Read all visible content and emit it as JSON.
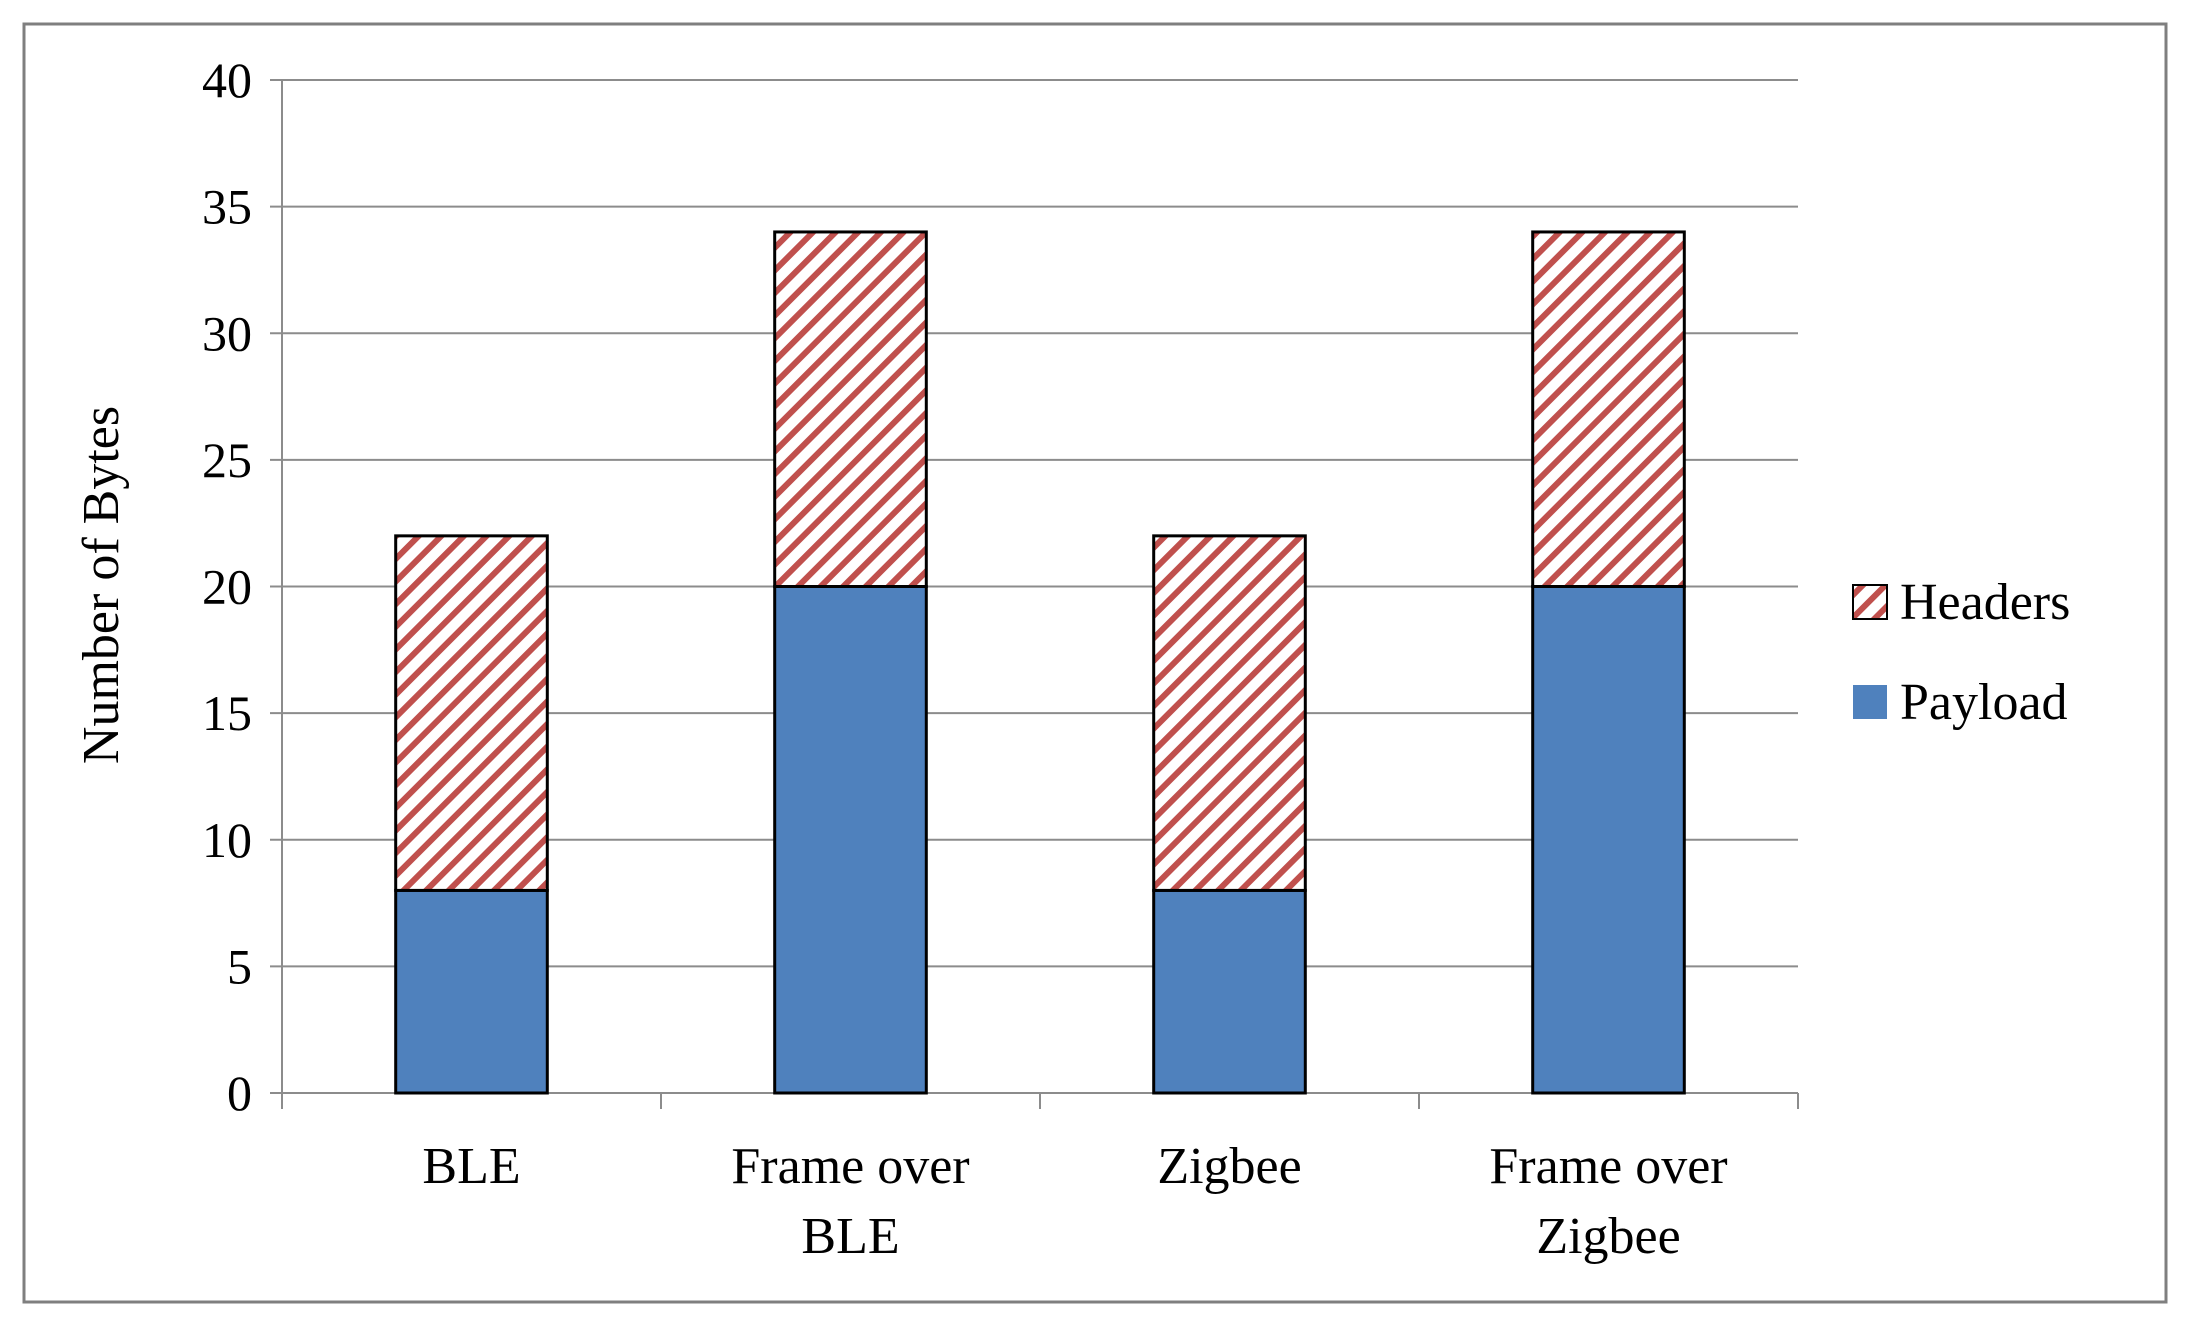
{
  "chart_data": {
    "type": "bar",
    "stacked": true,
    "title": "",
    "xlabel": "",
    "ylabel": "Number of Bytes",
    "ylim": [
      0,
      40
    ],
    "yticks": [
      0,
      5,
      10,
      15,
      20,
      25,
      30,
      35,
      40
    ],
    "categories": [
      [
        "BLE"
      ],
      [
        "Frame over",
        "BLE"
      ],
      [
        "Zigbee"
      ],
      [
        "Frame over",
        "Zigbee"
      ]
    ],
    "series": [
      {
        "name": "Payload",
        "values": [
          8,
          20,
          8,
          20
        ],
        "color": "#4f81bd",
        "pattern": "solid"
      },
      {
        "name": "Headers",
        "values": [
          14,
          14,
          14,
          14
        ],
        "color": "#c0504d",
        "pattern": "diagonal-hatch"
      }
    ],
    "legend": {
      "position": "right",
      "entries": [
        "Headers",
        "Payload"
      ]
    },
    "grid": true
  }
}
